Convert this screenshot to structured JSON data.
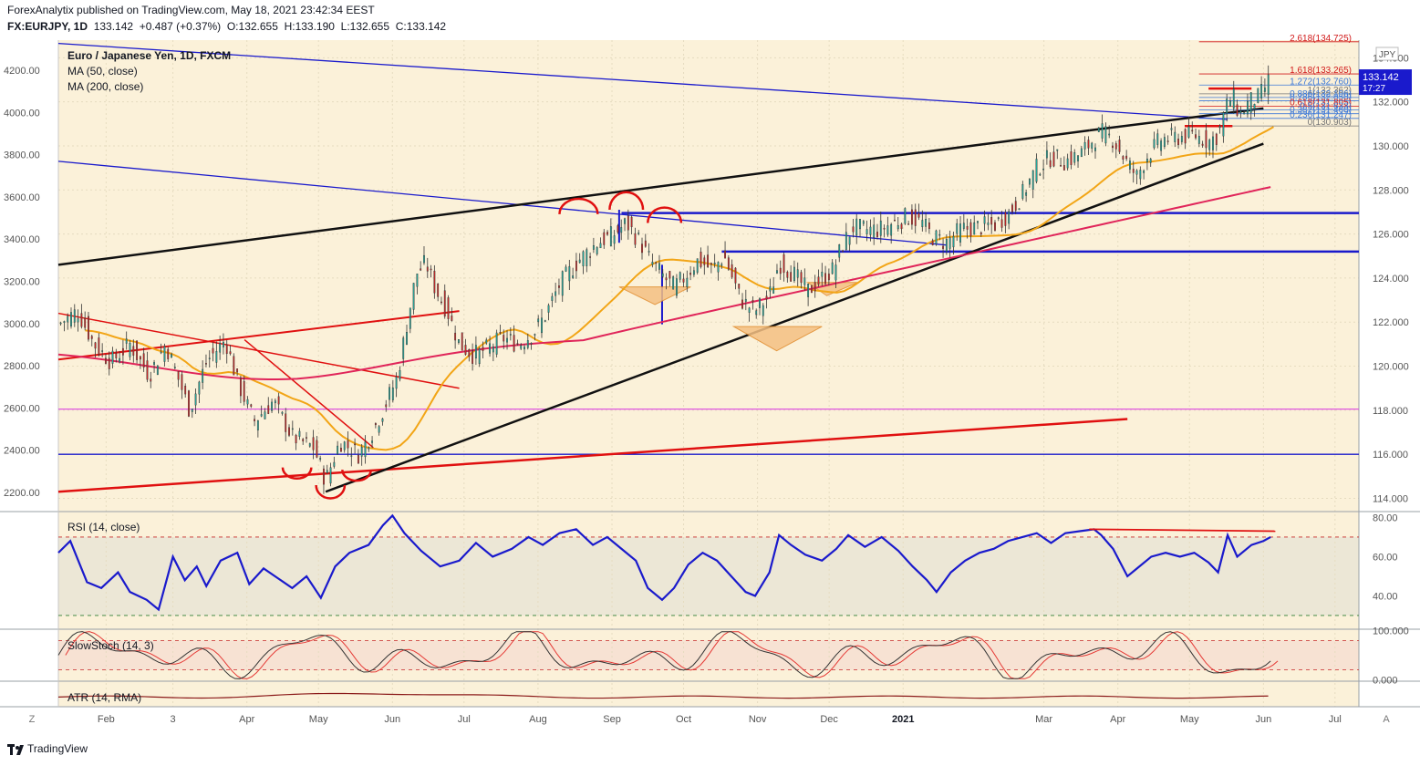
{
  "header": {
    "line1": "ForexAnalytix published on TradingView.com, May 18, 2021 23:42:34 EEST",
    "line2_symbol": "FX:EURJPY, 1D",
    "line2_last": "133.142",
    "line2_change": "+0.487 (+0.37%)",
    "line2_open_label": "O:",
    "line2_open": "132.655",
    "line2_high_label": "H:",
    "line2_high": "133.190",
    "line2_low_label": "L:",
    "line2_low": "132.655",
    "line2_close_label": "C:",
    "line2_close": "133.142"
  },
  "footer": {
    "brand": "TradingView"
  },
  "colors": {
    "panel_bg": "#fbf1d9",
    "rsi_band": "#e9e5d5",
    "stoch_band": "#f5dcd0",
    "blue": "#1a1acc",
    "red": "#e01010",
    "black": "#111111",
    "ma50": "#f2a516",
    "ma200": "#e0255a",
    "magenta": "#e055e0",
    "up": "#26a69a",
    "down": "#c62828"
  },
  "chart_data": [
    {
      "type": "line",
      "title": "Euro / Japanese Yen, 1D, FXCM",
      "legend": [
        "MA (50, close)",
        "MA (200, close)"
      ],
      "currency": "JPY",
      "right_axis": {
        "ylim": [
          113.4,
          134.8
        ],
        "ticks": [
          114,
          116,
          118,
          120,
          122,
          124,
          126,
          128,
          130,
          132,
          134
        ],
        "tick_labels": [
          "114.000",
          "116.000",
          "118.000",
          "120.000",
          "122.000",
          "124.000",
          "126.000",
          "128.000",
          "130.000",
          "132.000",
          "134.000"
        ]
      },
      "left_axis": {
        "ticks": [
          2200,
          2400,
          2600,
          2800,
          3000,
          3200,
          3400,
          3600,
          3800,
          4000,
          4200
        ],
        "tick_labels": [
          "2200.00",
          "2400.00",
          "2600.00",
          "2800.00",
          "3000.00",
          "3200.00",
          "3400.00",
          "3600.00",
          "3800.00",
          "4000.00",
          "4200.00"
        ]
      },
      "x_labels": [
        "Feb",
        "3",
        "Apr",
        "May",
        "Jun",
        "Jul",
        "Aug",
        "Sep",
        "Oct",
        "Nov",
        "Dec",
        "2021",
        "Mar",
        "Apr",
        "May",
        "Jun",
        "Jul"
      ],
      "x_label_days": [
        20,
        48,
        79,
        109,
        140,
        170,
        201,
        232,
        262,
        293,
        323,
        354,
        413,
        444,
        474,
        505,
        535
      ],
      "x_range_days": [
        0,
        545
      ],
      "price_path": [
        [
          0,
          121.9
        ],
        [
          8,
          122.5
        ],
        [
          15,
          121.0
        ],
        [
          22,
          120.2
        ],
        [
          30,
          121.0
        ],
        [
          38,
          119.6
        ],
        [
          45,
          121.0
        ],
        [
          55,
          118.0
        ],
        [
          62,
          120.2
        ],
        [
          70,
          121.2
        ],
        [
          75,
          119.3
        ],
        [
          82,
          117.5
        ],
        [
          90,
          118.4
        ],
        [
          98,
          116.8
        ],
        [
          107,
          116.3
        ],
        [
          112,
          114.8
        ],
        [
          118,
          116.6
        ],
        [
          126,
          116.0
        ],
        [
          132,
          117.1
        ],
        [
          136,
          118.0
        ],
        [
          142,
          119.5
        ],
        [
          146,
          121.9
        ],
        [
          150,
          124.2
        ],
        [
          154,
          124.7
        ],
        [
          158,
          123.5
        ],
        [
          163,
          122.5
        ],
        [
          168,
          121.0
        ],
        [
          174,
          120.5
        ],
        [
          180,
          120.8
        ],
        [
          186,
          121.3
        ],
        [
          193,
          121.0
        ],
        [
          199,
          121.5
        ],
        [
          204,
          122.3
        ],
        [
          210,
          123.7
        ],
        [
          218,
          124.8
        ],
        [
          226,
          125.6
        ],
        [
          233,
          126.0
        ],
        [
          238,
          126.5
        ],
        [
          244,
          125.6
        ],
        [
          248,
          124.8
        ],
        [
          254,
          124.0
        ],
        [
          258,
          123.6
        ],
        [
          262,
          124.0
        ],
        [
          268,
          124.8
        ],
        [
          274,
          124.4
        ],
        [
          279,
          125.0
        ],
        [
          286,
          123.0
        ],
        [
          292,
          122.5
        ],
        [
          298,
          123.2
        ],
        [
          302,
          124.7
        ],
        [
          308,
          124.2
        ],
        [
          314,
          123.4
        ],
        [
          320,
          124.0
        ],
        [
          325,
          124.4
        ],
        [
          328,
          125.4
        ],
        [
          333,
          126.3
        ],
        [
          338,
          126.2
        ],
        [
          344,
          126.2
        ],
        [
          350,
          126.5
        ],
        [
          356,
          126.8
        ],
        [
          362,
          126.5
        ],
        [
          366,
          125.9
        ],
        [
          372,
          125.6
        ],
        [
          378,
          126.2
        ],
        [
          384,
          126.3
        ],
        [
          392,
          126.4
        ],
        [
          398,
          126.9
        ],
        [
          404,
          127.8
        ],
        [
          410,
          129.0
        ],
        [
          416,
          129.5
        ],
        [
          422,
          129.3
        ],
        [
          428,
          129.6
        ],
        [
          434,
          130.3
        ],
        [
          437,
          130.6
        ],
        [
          442,
          130.3
        ],
        [
          448,
          129.2
        ],
        [
          452,
          128.6
        ],
        [
          456,
          129.5
        ],
        [
          462,
          130.3
        ],
        [
          470,
          130.4
        ],
        [
          476,
          130.5
        ],
        [
          482,
          130.2
        ],
        [
          486,
          130.5
        ],
        [
          489,
          131.7
        ],
        [
          492,
          132.3
        ],
        [
          495,
          131.4
        ],
        [
          499,
          132.0
        ],
        [
          503,
          132.2
        ],
        [
          506,
          132.7
        ],
        [
          508,
          133.14
        ]
      ],
      "last_price": "133.142",
      "countdown": "17:27",
      "fib_levels": [
        {
          "label": "2.618(134.725)",
          "value": 134.725,
          "color": "#d11a1a"
        },
        {
          "label": "1.618(133.265)",
          "value": 133.265,
          "color": "#d11a1a"
        },
        {
          "label": "1.272(132.760)",
          "value": 132.76,
          "color": "#3c78d8"
        },
        {
          "label": "1(132.362)",
          "value": 132.362,
          "color": "#777777"
        },
        {
          "label": "0.886(132.196)",
          "value": 132.196,
          "color": "#3c78d8"
        },
        {
          "label": "0.786(132.050)",
          "value": 132.05,
          "color": "#3c78d8"
        },
        {
          "label": "0.618(131.805)",
          "value": 131.805,
          "color": "#d11a1a"
        },
        {
          "label": "0.5(131.633)",
          "value": 131.633,
          "color": "#3c78d8"
        },
        {
          "label": "0.382(131.460)",
          "value": 131.46,
          "color": "#3c78d8"
        },
        {
          "label": "0.236(131.247)",
          "value": 131.247,
          "color": "#3c78d8"
        },
        {
          "label": "0(130.903)",
          "value": 130.903,
          "color": "#777777"
        }
      ]
    },
    {
      "type": "line",
      "title": "RSI (14, close)",
      "ylim": [
        23,
        83
      ],
      "ticks": [
        40,
        60,
        80
      ],
      "tick_labels": [
        "40.00",
        "60.00",
        "80.00"
      ],
      "bands": [
        30,
        70
      ],
      "series": [
        {
          "values": [
            [
              0,
              62
            ],
            [
              5,
              68
            ],
            [
              12,
              47
            ],
            [
              18,
              44
            ],
            [
              25,
              52
            ],
            [
              30,
              42
            ],
            [
              37,
              38
            ],
            [
              42,
              33
            ],
            [
              48,
              60
            ],
            [
              53,
              48
            ],
            [
              58,
              55
            ],
            [
              62,
              45
            ],
            [
              68,
              58
            ],
            [
              75,
              62
            ],
            [
              80,
              46
            ],
            [
              86,
              54
            ],
            [
              92,
              49
            ],
            [
              98,
              44
            ],
            [
              104,
              50
            ],
            [
              110,
              39
            ],
            [
              116,
              55
            ],
            [
              122,
              62
            ],
            [
              130,
              66
            ],
            [
              136,
              76
            ],
            [
              140,
              81
            ],
            [
              145,
              72
            ],
            [
              152,
              63
            ],
            [
              160,
              55
            ],
            [
              168,
              58
            ],
            [
              175,
              67
            ],
            [
              182,
              60
            ],
            [
              190,
              64
            ],
            [
              197,
              70
            ],
            [
              203,
              66
            ],
            [
              210,
              72
            ],
            [
              217,
              74
            ],
            [
              224,
              66
            ],
            [
              230,
              70
            ],
            [
              236,
              64
            ],
            [
              242,
              58
            ],
            [
              247,
              44
            ],
            [
              253,
              38
            ],
            [
              258,
              44
            ],
            [
              264,
              56
            ],
            [
              270,
              62
            ],
            [
              276,
              58
            ],
            [
              282,
              50
            ],
            [
              288,
              42
            ],
            [
              292,
              40
            ],
            [
              298,
              52
            ],
            [
              302,
              71
            ],
            [
              307,
              66
            ],
            [
              313,
              61
            ],
            [
              320,
              58
            ],
            [
              326,
              64
            ],
            [
              331,
              71
            ],
            [
              338,
              65
            ],
            [
              345,
              70
            ],
            [
              352,
              63
            ],
            [
              358,
              55
            ],
            [
              364,
              48
            ],
            [
              368,
              42
            ],
            [
              374,
              52
            ],
            [
              380,
              58
            ],
            [
              386,
              62
            ],
            [
              392,
              64
            ],
            [
              398,
              68
            ],
            [
              404,
              70
            ],
            [
              410,
              72
            ],
            [
              416,
              67
            ],
            [
              422,
              72
            ],
            [
              428,
              73
            ],
            [
              434,
              74
            ],
            [
              437,
              71
            ],
            [
              442,
              64
            ],
            [
              448,
              50
            ],
            [
              452,
              54
            ],
            [
              458,
              60
            ],
            [
              464,
              62
            ],
            [
              470,
              60
            ],
            [
              476,
              62
            ],
            [
              482,
              57
            ],
            [
              486,
              52
            ],
            [
              490,
              71
            ],
            [
              494,
              60
            ],
            [
              500,
              66
            ],
            [
              505,
              68
            ],
            [
              508,
              70
            ]
          ]
        }
      ],
      "divergence": [
        [
          432,
          74
        ],
        [
          510,
          73
        ]
      ]
    },
    {
      "type": "line",
      "title": "SlowStoch (14, 3)",
      "ylim": [
        -3,
        103
      ],
      "ticks": [
        0,
        100
      ],
      "tick_labels": [
        "0.000",
        "100.000"
      ],
      "bands": [
        20,
        80
      ]
    },
    {
      "type": "area",
      "title": "ATR (14, RMA)"
    }
  ]
}
